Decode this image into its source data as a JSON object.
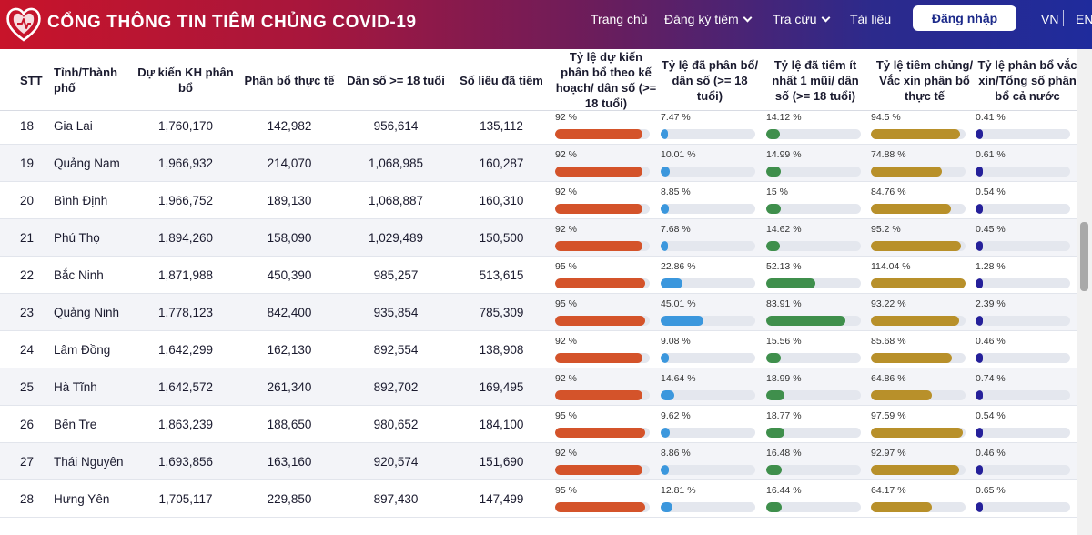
{
  "header": {
    "title": "CỔNG THÔNG TIN TIÊM CHỦNG COVID-19",
    "nav": [
      {
        "label": "Trang chủ",
        "dropdown": false
      },
      {
        "label": "Đăng ký tiêm",
        "dropdown": true
      },
      {
        "label": "Tra cứu",
        "dropdown": true
      },
      {
        "label": "Tài liệu",
        "dropdown": false
      }
    ],
    "login_label": "Đăng nhập",
    "lang_vn": "VN",
    "lang_en": "EN"
  },
  "colors": {
    "bar_plan": "#d4532a",
    "bar_alloc": "#3b97dd",
    "bar_dose1": "#3f8f4c",
    "bar_used": "#b8902a",
    "bar_national": "#25209a"
  },
  "table": {
    "columns": [
      "STT",
      "Tỉnh/Thành phố",
      "Dự kiến KH phân bổ",
      "Phân bổ thực tế",
      "Dân số >= 18 tuổi",
      "Số liều đã tiêm",
      "Tỷ lệ dự kiến phân bổ theo kế hoạch/ dân số (>= 18 tuổi)",
      "Tỷ lệ đã phân bổ/ dân số (>= 18 tuổi)",
      "Tỷ lệ đã tiêm ít nhất 1 mũi/ dân số (>= 18 tuổi)",
      "Tỷ lệ tiêm chủng/ Vắc xin phân bổ thực tế",
      "Tỷ lệ phân bổ vắc xin/Tổng số phân bổ cả nước"
    ],
    "rows": [
      {
        "stt": "18",
        "province": "Gia Lai",
        "plan": "1,760,170",
        "actual": "142,982",
        "population": "956,614",
        "doses": "135,112",
        "r_plan": "92 %",
        "v_plan": 92,
        "r_alloc": "7.47 %",
        "v_alloc": 7.47,
        "r_dose1": "14.12 %",
        "v_dose1": 14.12,
        "r_used": "94.5 %",
        "v_used": 94.5,
        "r_national": "0.41 %",
        "v_national": 0.41
      },
      {
        "stt": "19",
        "province": "Quảng Nam",
        "plan": "1,966,932",
        "actual": "214,070",
        "population": "1,068,985",
        "doses": "160,287",
        "r_plan": "92 %",
        "v_plan": 92,
        "r_alloc": "10.01 %",
        "v_alloc": 10.01,
        "r_dose1": "14.99 %",
        "v_dose1": 14.99,
        "r_used": "74.88 %",
        "v_used": 74.88,
        "r_national": "0.61 %",
        "v_national": 0.61
      },
      {
        "stt": "20",
        "province": "Bình Định",
        "plan": "1,966,752",
        "actual": "189,130",
        "population": "1,068,887",
        "doses": "160,310",
        "r_plan": "92 %",
        "v_plan": 92,
        "r_alloc": "8.85 %",
        "v_alloc": 8.85,
        "r_dose1": "15 %",
        "v_dose1": 15,
        "r_used": "84.76 %",
        "v_used": 84.76,
        "r_national": "0.54 %",
        "v_national": 0.54
      },
      {
        "stt": "21",
        "province": "Phú Thọ",
        "plan": "1,894,260",
        "actual": "158,090",
        "population": "1,029,489",
        "doses": "150,500",
        "r_plan": "92 %",
        "v_plan": 92,
        "r_alloc": "7.68 %",
        "v_alloc": 7.68,
        "r_dose1": "14.62 %",
        "v_dose1": 14.62,
        "r_used": "95.2 %",
        "v_used": 95.2,
        "r_national": "0.45 %",
        "v_national": 0.45
      },
      {
        "stt": "22",
        "province": "Bắc Ninh",
        "plan": "1,871,988",
        "actual": "450,390",
        "population": "985,257",
        "doses": "513,615",
        "r_plan": "95 %",
        "v_plan": 95,
        "r_alloc": "22.86 %",
        "v_alloc": 22.86,
        "r_dose1": "52.13 %",
        "v_dose1": 52.13,
        "r_used": "114.04 %",
        "v_used": 114.04,
        "r_national": "1.28 %",
        "v_national": 1.28
      },
      {
        "stt": "23",
        "province": "Quảng Ninh",
        "plan": "1,778,123",
        "actual": "842,400",
        "population": "935,854",
        "doses": "785,309",
        "r_plan": "95 %",
        "v_plan": 95,
        "r_alloc": "45.01 %",
        "v_alloc": 45.01,
        "r_dose1": "83.91 %",
        "v_dose1": 83.91,
        "r_used": "93.22 %",
        "v_used": 93.22,
        "r_national": "2.39 %",
        "v_national": 2.39
      },
      {
        "stt": "24",
        "province": "Lâm Đồng",
        "plan": "1,642,299",
        "actual": "162,130",
        "population": "892,554",
        "doses": "138,908",
        "r_plan": "92 %",
        "v_plan": 92,
        "r_alloc": "9.08 %",
        "v_alloc": 9.08,
        "r_dose1": "15.56 %",
        "v_dose1": 15.56,
        "r_used": "85.68 %",
        "v_used": 85.68,
        "r_national": "0.46 %",
        "v_national": 0.46
      },
      {
        "stt": "25",
        "province": "Hà Tĩnh",
        "plan": "1,642,572",
        "actual": "261,340",
        "population": "892,702",
        "doses": "169,495",
        "r_plan": "92 %",
        "v_plan": 92,
        "r_alloc": "14.64 %",
        "v_alloc": 14.64,
        "r_dose1": "18.99 %",
        "v_dose1": 18.99,
        "r_used": "64.86 %",
        "v_used": 64.86,
        "r_national": "0.74 %",
        "v_national": 0.74
      },
      {
        "stt": "26",
        "province": "Bến Tre",
        "plan": "1,863,239",
        "actual": "188,650",
        "population": "980,652",
        "doses": "184,100",
        "r_plan": "95 %",
        "v_plan": 95,
        "r_alloc": "9.62 %",
        "v_alloc": 9.62,
        "r_dose1": "18.77 %",
        "v_dose1": 18.77,
        "r_used": "97.59 %",
        "v_used": 97.59,
        "r_national": "0.54 %",
        "v_national": 0.54
      },
      {
        "stt": "27",
        "province": "Thái Nguyên",
        "plan": "1,693,856",
        "actual": "163,160",
        "population": "920,574",
        "doses": "151,690",
        "r_plan": "92 %",
        "v_plan": 92,
        "r_alloc": "8.86 %",
        "v_alloc": 8.86,
        "r_dose1": "16.48 %",
        "v_dose1": 16.48,
        "r_used": "92.97 %",
        "v_used": 92.97,
        "r_national": "0.46 %",
        "v_national": 0.46
      },
      {
        "stt": "28",
        "province": "Hưng Yên",
        "plan": "1,705,117",
        "actual": "229,850",
        "population": "897,430",
        "doses": "147,499",
        "r_plan": "95 %",
        "v_plan": 95,
        "r_alloc": "12.81 %",
        "v_alloc": 12.81,
        "r_dose1": "16.44 %",
        "v_dose1": 16.44,
        "r_used": "64.17 %",
        "v_used": 64.17,
        "r_national": "0.65 %",
        "v_national": 0.65
      }
    ]
  }
}
